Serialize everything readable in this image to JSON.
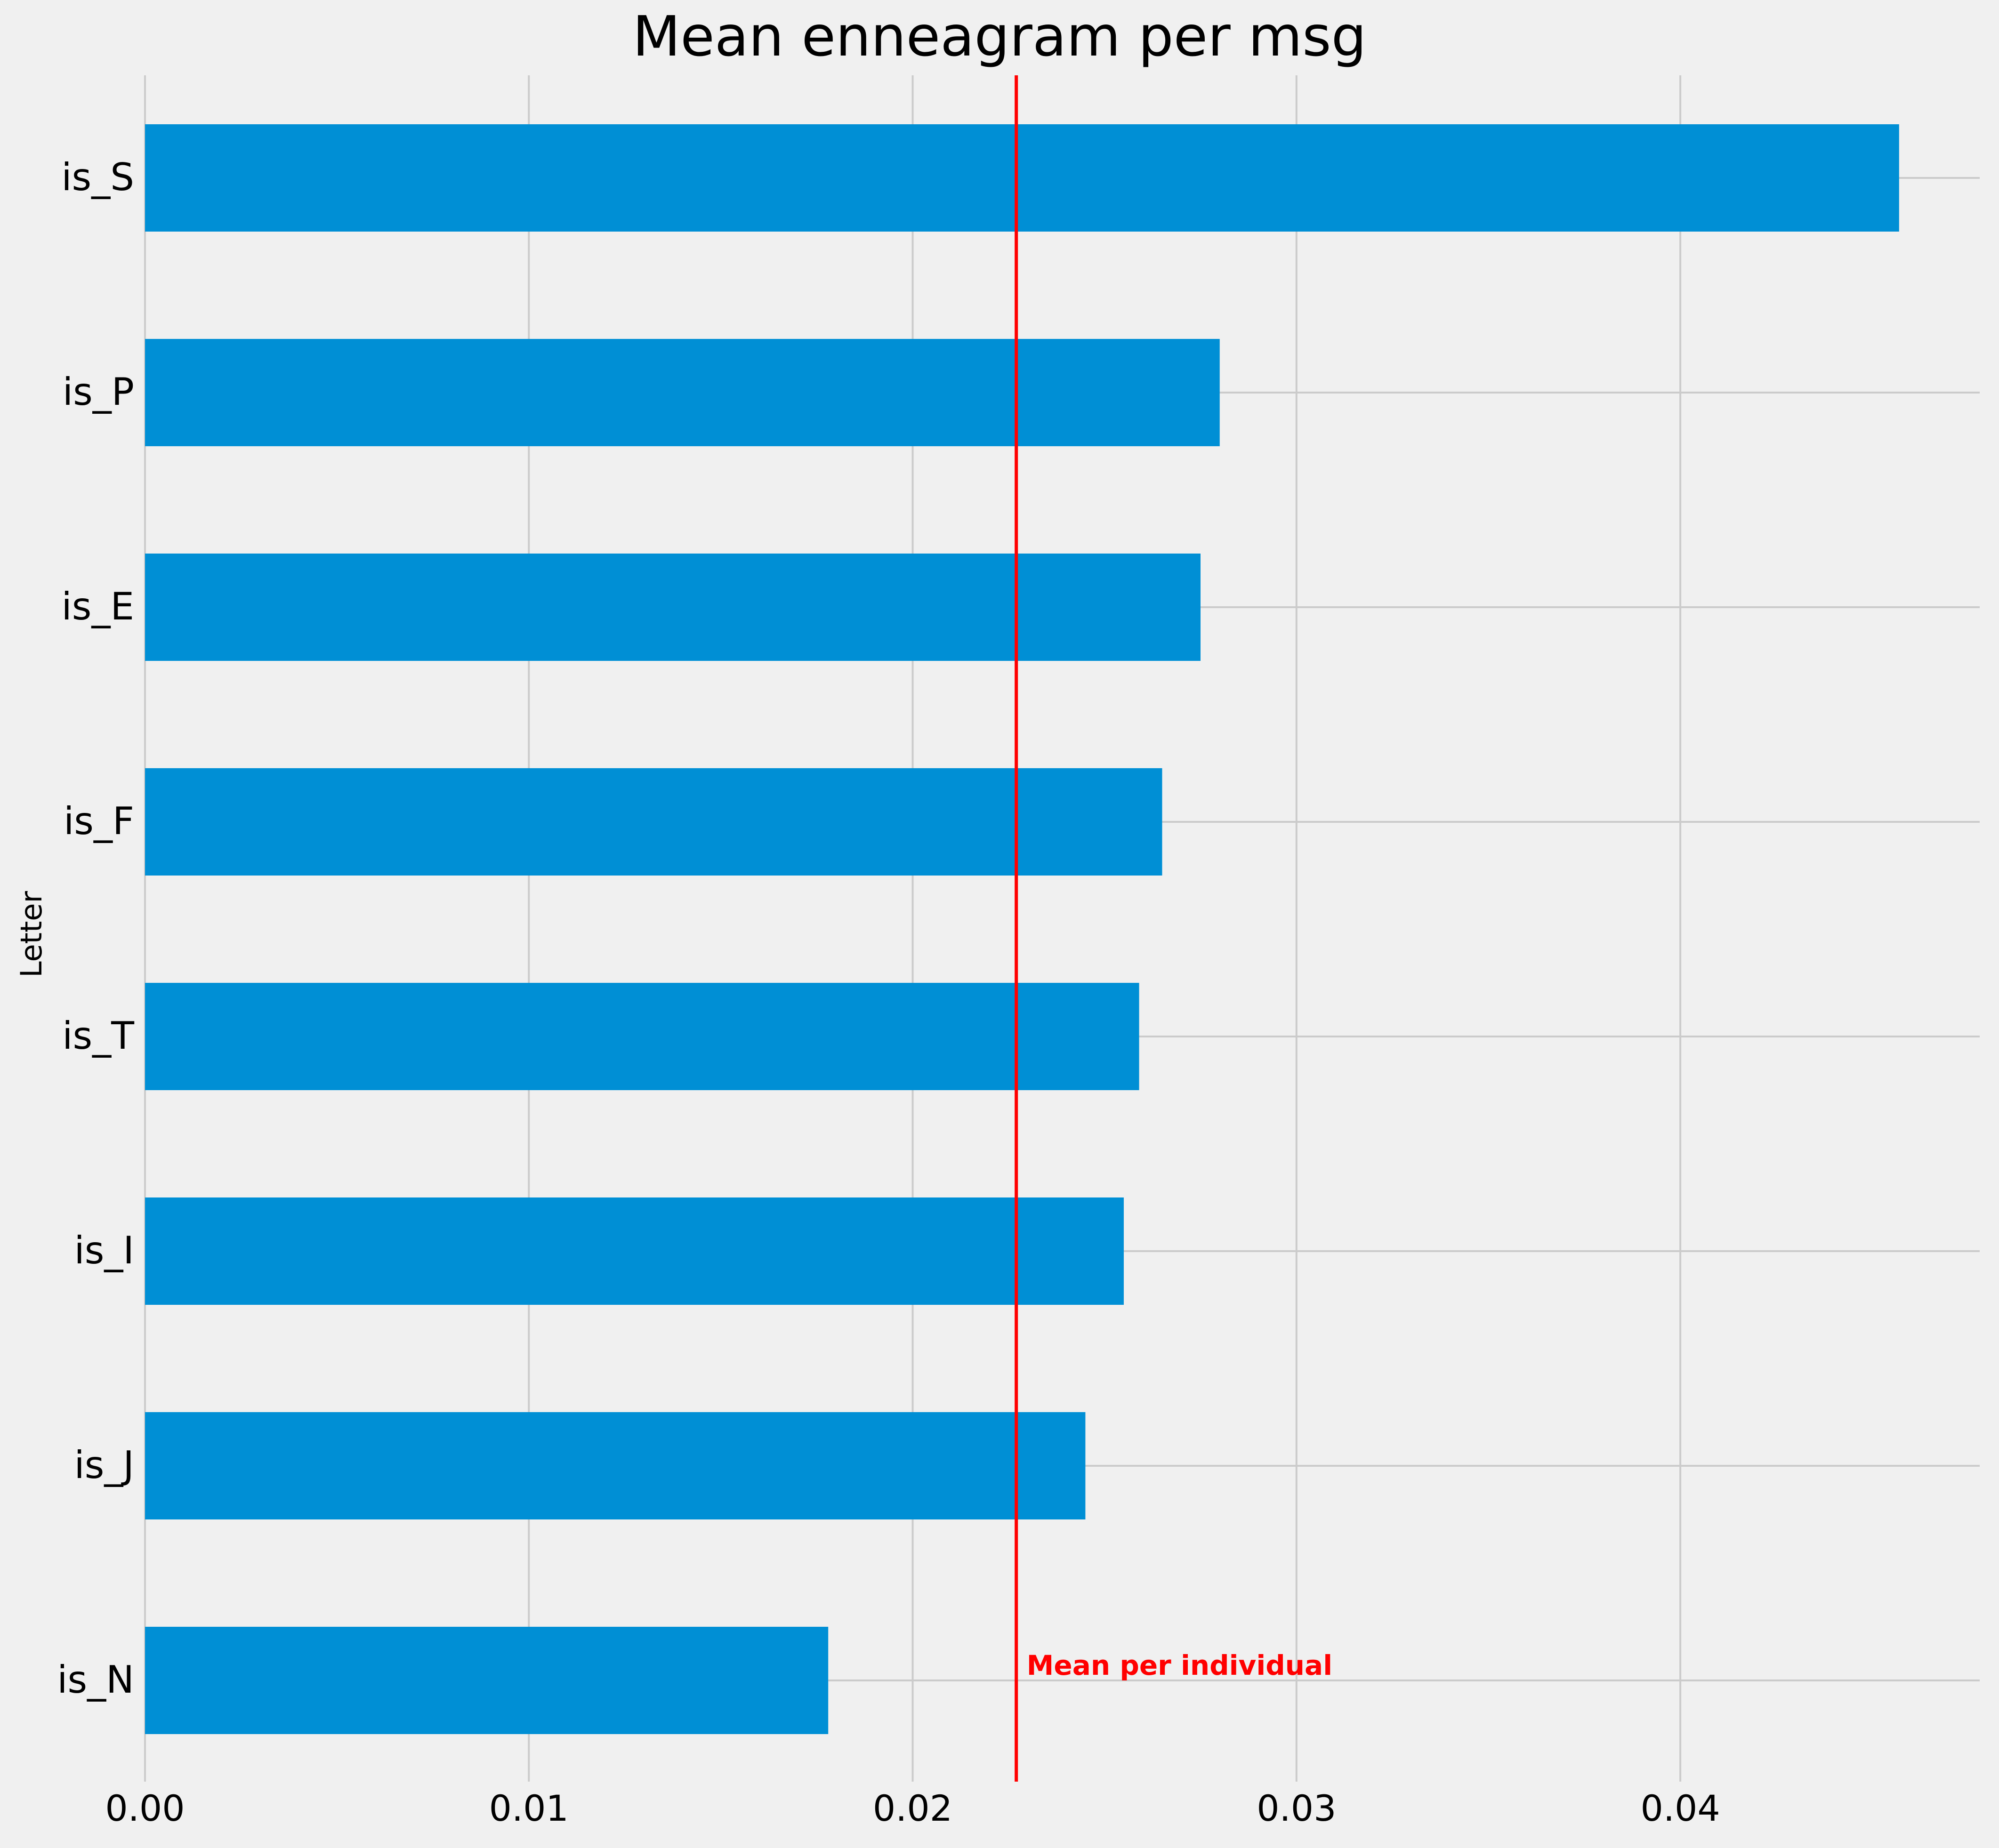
{
  "chart_data": {
    "type": "bar",
    "orientation": "horizontal",
    "title": "Mean enneagram per msg",
    "xlabel": "",
    "ylabel": "Letter",
    "categories": [
      "is_S",
      "is_P",
      "is_E",
      "is_F",
      "is_T",
      "is_I",
      "is_J",
      "is_N"
    ],
    "values": [
      0.0457,
      0.028,
      0.0275,
      0.0265,
      0.0259,
      0.0255,
      0.0245,
      0.0178
    ],
    "xlim": [
      0,
      0.0478
    ],
    "xticks": [
      0.0,
      0.01,
      0.02,
      0.03,
      0.04
    ],
    "xtick_labels": [
      "0.00",
      "0.01",
      "0.02",
      "0.03",
      "0.04"
    ],
    "grid": true,
    "legend": "none",
    "reference_line": {
      "value": 0.0227,
      "label": "Mean per individual",
      "color": "#ff0000"
    },
    "colors": {
      "bar": "#008fd5",
      "background": "#f0f0f0",
      "grid": "#cbcbcb",
      "text": "#000000"
    }
  }
}
